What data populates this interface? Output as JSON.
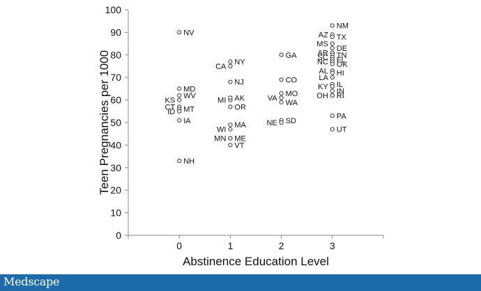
{
  "chart_data": {
    "type": "scatter",
    "title": "",
    "xlabel": "Abstinence Education Level",
    "ylabel": "Teen Pregnancies per 1000",
    "xlim": [
      -1,
      4
    ],
    "ylim": [
      0,
      100
    ],
    "x_ticks": [
      "0",
      "1",
      "2",
      "3"
    ],
    "y_ticks": [
      "0",
      "10",
      "20",
      "30",
      "40",
      "50",
      "60",
      "70",
      "80",
      "90",
      "100"
    ],
    "grid": false,
    "points": [
      {
        "label": "NV",
        "x": 0,
        "y": 90
      },
      {
        "label": "MD",
        "x": 0,
        "y": 65
      },
      {
        "label": "WV",
        "x": 0,
        "y": 62
      },
      {
        "label": "KS",
        "x": 0,
        "y": 60
      },
      {
        "label": "CT",
        "x": 0,
        "y": 57
      },
      {
        "label": "MT",
        "x": 0,
        "y": 56
      },
      {
        "label": "ID",
        "x": 0,
        "y": 55
      },
      {
        "label": "IA",
        "x": 0,
        "y": 51
      },
      {
        "label": "NH",
        "x": 0,
        "y": 33
      },
      {
        "label": "NY",
        "x": 1,
        "y": 77
      },
      {
        "label": "CA",
        "x": 1,
        "y": 75
      },
      {
        "label": "NJ",
        "x": 1,
        "y": 68
      },
      {
        "label": "MI",
        "x": 1,
        "y": 60
      },
      {
        "label": "AK",
        "x": 1,
        "y": 61
      },
      {
        "label": "OR",
        "x": 1,
        "y": 57
      },
      {
        "label": "MA",
        "x": 1,
        "y": 49
      },
      {
        "label": "WI",
        "x": 1,
        "y": 47
      },
      {
        "label": "MN",
        "x": 1,
        "y": 43
      },
      {
        "label": "ME",
        "x": 1,
        "y": 43
      },
      {
        "label": "VT",
        "x": 1,
        "y": 40
      },
      {
        "label": "GA",
        "x": 2,
        "y": 80
      },
      {
        "label": "CO",
        "x": 2,
        "y": 69
      },
      {
        "label": "MO",
        "x": 2,
        "y": 63
      },
      {
        "label": "VA",
        "x": 2,
        "y": 61
      },
      {
        "label": "WA",
        "x": 2,
        "y": 59
      },
      {
        "label": "SD",
        "x": 2,
        "y": 51
      },
      {
        "label": "NE",
        "x": 2,
        "y": 50
      },
      {
        "label": "NM",
        "x": 3,
        "y": 93
      },
      {
        "label": "AZ",
        "x": 3,
        "y": 89
      },
      {
        "label": "TX",
        "x": 3,
        "y": 88
      },
      {
        "label": "MS",
        "x": 3,
        "y": 85
      },
      {
        "label": "DE",
        "x": 3,
        "y": 83
      },
      {
        "label": "AR",
        "x": 3,
        "y": 81
      },
      {
        "label": "TN",
        "x": 3,
        "y": 80
      },
      {
        "label": "SC",
        "x": 3,
        "y": 79
      },
      {
        "label": "FL",
        "x": 3,
        "y": 78
      },
      {
        "label": "NC",
        "x": 3,
        "y": 77
      },
      {
        "label": "OK",
        "x": 3,
        "y": 76
      },
      {
        "label": "AL",
        "x": 3,
        "y": 73
      },
      {
        "label": "HI",
        "x": 3,
        "y": 72
      },
      {
        "label": "LA",
        "x": 3,
        "y": 70
      },
      {
        "label": "IL",
        "x": 3,
        "y": 67
      },
      {
        "label": "KY",
        "x": 3,
        "y": 66
      },
      {
        "label": "IN",
        "x": 3,
        "y": 64
      },
      {
        "label": "RI",
        "x": 3,
        "y": 62
      },
      {
        "label": "OH",
        "x": 3,
        "y": 62
      },
      {
        "label": "PA",
        "x": 3,
        "y": 53
      },
      {
        "label": "UT",
        "x": 3,
        "y": 47
      }
    ]
  },
  "footer": {
    "brand": "Medscape",
    "color": "#1f6aa8"
  }
}
